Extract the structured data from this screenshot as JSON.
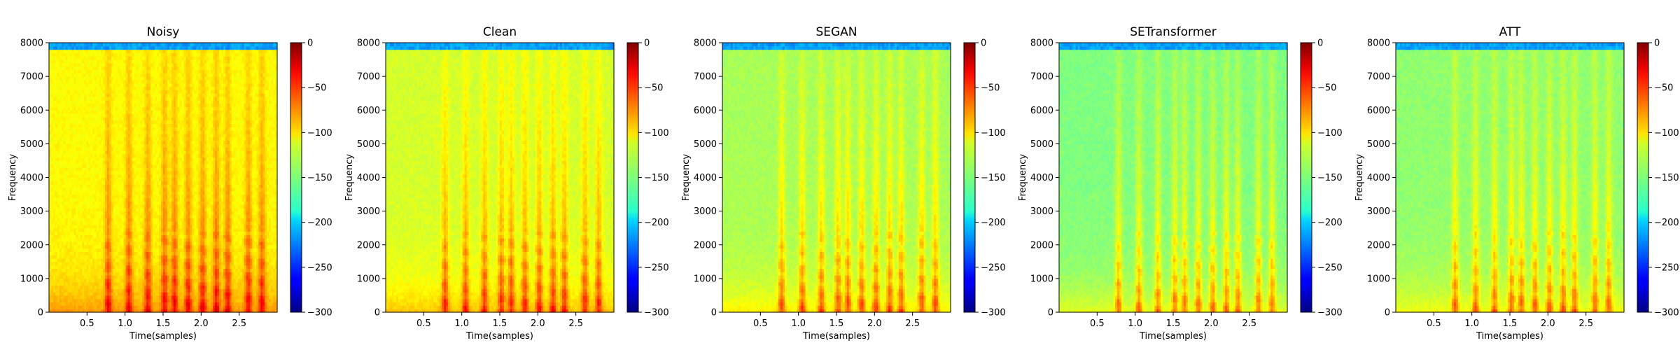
{
  "chart_data": [
    {
      "type": "heatmap",
      "title": "Noisy",
      "xlabel": "Time(samples)",
      "ylabel": "Frequency",
      "xlim": [
        0,
        3.0
      ],
      "ylim": [
        0,
        8000
      ],
      "xticks": [
        0.5,
        1.0,
        1.5,
        2.0,
        2.5
      ],
      "xtick_labels": [
        "0.5",
        "1.0",
        "1.5",
        "2.0",
        "2.5"
      ],
      "yticks": [
        0,
        1000,
        2000,
        3000,
        4000,
        5000,
        6000,
        7000,
        8000
      ],
      "ytick_labels": [
        "0",
        "1000",
        "2000",
        "3000",
        "4000",
        "5000",
        "6000",
        "7000",
        "8000"
      ],
      "colorbar": {
        "range": [
          -300,
          0
        ],
        "ticks": [
          0,
          -50,
          -100,
          -150,
          -200,
          -250,
          -300
        ],
        "tick_labels": [
          "0",
          "−50",
          "−100",
          "−150",
          "−200",
          "−250",
          "−300"
        ],
        "colormap": "jet"
      },
      "floor_db": -112
    },
    {
      "type": "heatmap",
      "title": "Clean",
      "xlabel": "Time(samples)",
      "ylabel": "Frequency",
      "xlim": [
        0,
        3.0
      ],
      "ylim": [
        0,
        8000
      ],
      "xticks": [
        0.5,
        1.0,
        1.5,
        2.0,
        2.5
      ],
      "xtick_labels": [
        "0.5",
        "1.0",
        "1.5",
        "2.0",
        "2.5"
      ],
      "yticks": [
        0,
        1000,
        2000,
        3000,
        4000,
        5000,
        6000,
        7000,
        8000
      ],
      "ytick_labels": [
        "0",
        "1000",
        "2000",
        "3000",
        "4000",
        "5000",
        "6000",
        "7000",
        "8000"
      ],
      "colorbar": {
        "range": [
          -300,
          0
        ],
        "ticks": [
          0,
          -50,
          -100,
          -150,
          -200,
          -250,
          -300
        ],
        "tick_labels": [
          "0",
          "−50",
          "−100",
          "−150",
          "−200",
          "−250",
          "−300"
        ],
        "colormap": "jet"
      },
      "floor_db": -125
    },
    {
      "type": "heatmap",
      "title": "SEGAN",
      "xlabel": "Time(samples)",
      "ylabel": "Frequency",
      "xlim": [
        0,
        3.0
      ],
      "ylim": [
        0,
        8000
      ],
      "xticks": [
        0.5,
        1.0,
        1.5,
        2.0,
        2.5
      ],
      "xtick_labels": [
        "0.5",
        "1.0",
        "1.5",
        "2.0",
        "2.5"
      ],
      "yticks": [
        0,
        1000,
        2000,
        3000,
        4000,
        5000,
        6000,
        7000,
        8000
      ],
      "ytick_labels": [
        "0",
        "1000",
        "2000",
        "3000",
        "4000",
        "5000",
        "6000",
        "7000",
        "8000"
      ],
      "colorbar": {
        "range": [
          -300,
          0
        ],
        "ticks": [
          0,
          -50,
          -100,
          -150,
          -200,
          -250,
          -300
        ],
        "tick_labels": [
          "0",
          "−50",
          "−100",
          "−150",
          "−200",
          "−250",
          "−300"
        ],
        "colormap": "jet"
      },
      "floor_db": -138
    },
    {
      "type": "heatmap",
      "title": "SETransformer",
      "xlabel": "Time(samples)",
      "ylabel": "Frequency",
      "xlim": [
        0,
        3.0
      ],
      "ylim": [
        0,
        8000
      ],
      "xticks": [
        0.5,
        1.0,
        1.5,
        2.0,
        2.5
      ],
      "xtick_labels": [
        "0.5",
        "1.0",
        "1.5",
        "2.0",
        "2.5"
      ],
      "yticks": [
        0,
        1000,
        2000,
        3000,
        4000,
        5000,
        6000,
        7000,
        8000
      ],
      "ytick_labels": [
        "0",
        "1000",
        "2000",
        "3000",
        "4000",
        "5000",
        "6000",
        "7000",
        "8000"
      ],
      "colorbar": {
        "range": [
          -300,
          0
        ],
        "ticks": [
          0,
          -50,
          -100,
          -150,
          -200,
          -250,
          -300
        ],
        "tick_labels": [
          "0",
          "−50",
          "−100",
          "−150",
          "−200",
          "−250",
          "−300"
        ],
        "colormap": "jet"
      },
      "floor_db": -150
    },
    {
      "type": "heatmap",
      "title": "ATT",
      "xlabel": "Time(samples)",
      "ylabel": "Frequency",
      "xlim": [
        0,
        3.0
      ],
      "ylim": [
        0,
        8000
      ],
      "xticks": [
        0.5,
        1.0,
        1.5,
        2.0,
        2.5
      ],
      "xtick_labels": [
        "0.5",
        "1.0",
        "1.5",
        "2.0",
        "2.5"
      ],
      "yticks": [
        0,
        1000,
        2000,
        3000,
        4000,
        5000,
        6000,
        7000,
        8000
      ],
      "ytick_labels": [
        "0",
        "1000",
        "2000",
        "3000",
        "4000",
        "5000",
        "6000",
        "7000",
        "8000"
      ],
      "colorbar": {
        "range": [
          -300,
          0
        ],
        "ticks": [
          0,
          -50,
          -100,
          -150,
          -200,
          -250,
          -300
        ],
        "tick_labels": [
          "0",
          "−50",
          "−100",
          "−150",
          "−200",
          "−250",
          "−300"
        ],
        "colormap": "jet"
      },
      "floor_db": -145
    }
  ]
}
